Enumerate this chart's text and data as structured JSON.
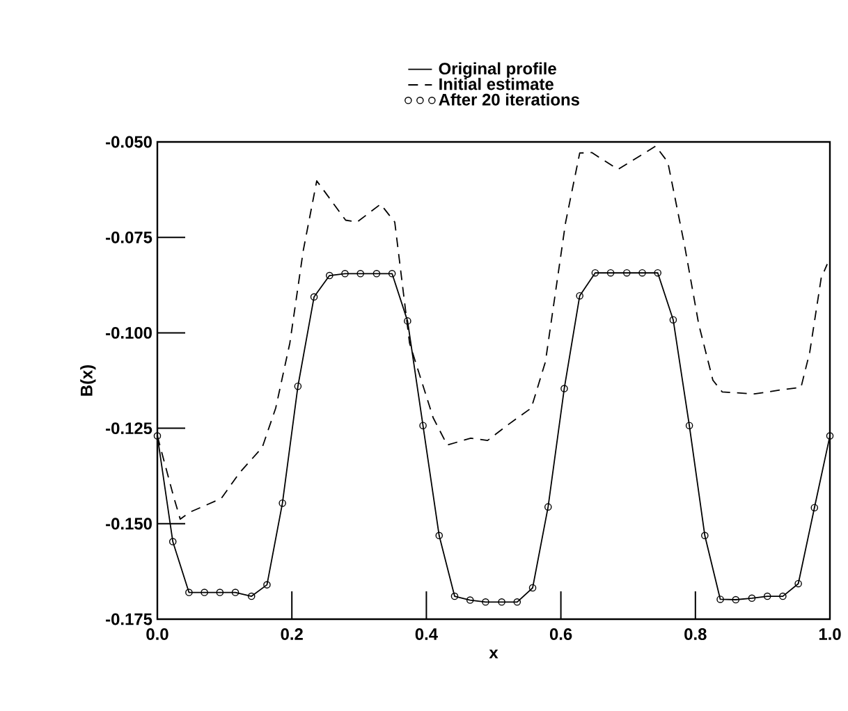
{
  "chart_data": {
    "type": "line",
    "xlabel": "x",
    "ylabel": "B(x)",
    "xlim": [
      0,
      1
    ],
    "ylim": [
      -0.175,
      -0.05
    ],
    "xticks": [
      {
        "value": 0,
        "label": "0.0"
      },
      {
        "value": 0.2,
        "label": "0.2"
      },
      {
        "value": 0.4,
        "label": "0.4"
      },
      {
        "value": 0.6,
        "label": "0.6"
      },
      {
        "value": 0.8,
        "label": "0.8"
      },
      {
        "value": 1,
        "label": "1.0"
      }
    ],
    "yticks": [
      {
        "value": -0.175,
        "label": "-0.175"
      },
      {
        "value": -0.15,
        "label": "-0.150"
      },
      {
        "value": -0.125,
        "label": "-0.125"
      },
      {
        "value": -0.1,
        "label": "-0.100"
      },
      {
        "value": -0.075,
        "label": "-0.075"
      },
      {
        "value": -0.05,
        "label": "-0.050"
      }
    ],
    "grid": false,
    "legend": "top",
    "series": [
      {
        "name": "Original profile",
        "line_style": "solid",
        "marker": "none",
        "color": "#000000",
        "x": [
          0,
          0.023,
          0.047,
          0.07,
          0.093,
          0.116,
          0.14,
          0.163,
          0.186,
          0.209,
          0.233,
          0.256,
          0.279,
          0.302,
          0.326,
          0.349,
          0.372,
          0.395,
          0.419,
          0.442,
          0.465,
          0.488,
          0.512,
          0.535,
          0.558,
          0.581,
          0.605,
          0.628,
          0.651,
          0.674,
          0.698,
          0.721,
          0.744,
          0.767,
          0.791,
          0.814,
          0.837,
          0.86,
          0.884,
          0.907,
          0.93,
          0.953,
          0.977,
          1
        ],
        "values": [
          -0.127,
          -0.1547,
          -0.168,
          -0.168,
          -0.168,
          -0.168,
          -0.169,
          -0.166,
          -0.1446,
          -0.114,
          -0.0906,
          -0.085,
          -0.0845,
          -0.0845,
          -0.0845,
          -0.0845,
          -0.0969,
          -0.1243,
          -0.1531,
          -0.169,
          -0.17,
          -0.1705,
          -0.1705,
          -0.1705,
          -0.1668,
          -0.1456,
          -0.1146,
          -0.0903,
          -0.0843,
          -0.0843,
          -0.0843,
          -0.0843,
          -0.0843,
          -0.0966,
          -0.1243,
          -0.1531,
          -0.1698,
          -0.1699,
          -0.1695,
          -0.169,
          -0.169,
          -0.1657,
          -0.1458,
          -0.127
        ]
      },
      {
        "name": "Initial estimate",
        "line_style": "dashed",
        "marker": "none",
        "color": "#000000",
        "x": [
          0,
          0.024,
          0.034,
          0.048,
          0.095,
          0.122,
          0.156,
          0.176,
          0.197,
          0.217,
          0.237,
          0.28,
          0.297,
          0.332,
          0.353,
          0.375,
          0.41,
          0.431,
          0.466,
          0.491,
          0.522,
          0.556,
          0.577,
          0.607,
          0.628,
          0.646,
          0.685,
          0.741,
          0.759,
          0.784,
          0.805,
          0.826,
          0.84,
          0.888,
          0.929,
          0.957,
          0.97,
          0.987,
          0.996
        ],
        "values": [
          -0.127,
          -0.1428,
          -0.1488,
          -0.147,
          -0.1434,
          -0.1367,
          -0.13,
          -0.1197,
          -0.1027,
          -0.0784,
          -0.0602,
          -0.0705,
          -0.071,
          -0.0663,
          -0.071,
          -0.1027,
          -0.1222,
          -0.1294,
          -0.1276,
          -0.1282,
          -0.124,
          -0.1197,
          -0.1076,
          -0.0711,
          -0.0529,
          -0.0528,
          -0.0572,
          -0.0511,
          -0.0553,
          -0.0772,
          -0.0978,
          -0.1124,
          -0.1155,
          -0.116,
          -0.1149,
          -0.1143,
          -0.1051,
          -0.0857,
          -0.082
        ]
      },
      {
        "name": "After 20 iterations",
        "type": "scatter",
        "marker": "circle",
        "color": "#000000",
        "x": [
          0,
          0.023,
          0.047,
          0.07,
          0.093,
          0.116,
          0.14,
          0.163,
          0.186,
          0.209,
          0.233,
          0.256,
          0.279,
          0.302,
          0.326,
          0.349,
          0.372,
          0.395,
          0.419,
          0.442,
          0.465,
          0.488,
          0.512,
          0.535,
          0.558,
          0.581,
          0.605,
          0.628,
          0.651,
          0.674,
          0.698,
          0.721,
          0.744,
          0.767,
          0.791,
          0.814,
          0.837,
          0.86,
          0.884,
          0.907,
          0.93,
          0.953,
          0.977,
          1
        ],
        "values": [
          -0.127,
          -0.1547,
          -0.168,
          -0.168,
          -0.168,
          -0.168,
          -0.169,
          -0.166,
          -0.1446,
          -0.114,
          -0.0906,
          -0.085,
          -0.0845,
          -0.0845,
          -0.0845,
          -0.0845,
          -0.0969,
          -0.1243,
          -0.1531,
          -0.169,
          -0.17,
          -0.1705,
          -0.1705,
          -0.1705,
          -0.1668,
          -0.1456,
          -0.1146,
          -0.0903,
          -0.0843,
          -0.0843,
          -0.0843,
          -0.0843,
          -0.0843,
          -0.0966,
          -0.1243,
          -0.1531,
          -0.1698,
          -0.1699,
          -0.1695,
          -0.169,
          -0.169,
          -0.1657,
          -0.1458,
          -0.127
        ]
      }
    ]
  }
}
